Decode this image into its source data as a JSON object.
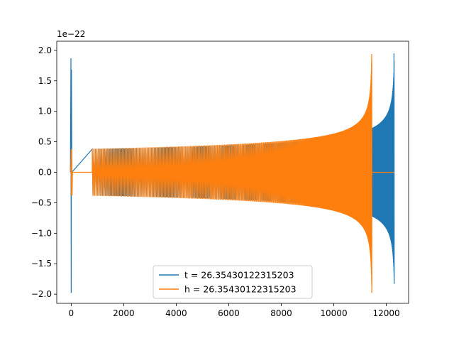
{
  "chart_data": {
    "type": "line",
    "title": "",
    "xlabel": "",
    "ylabel": "",
    "y_offset_label": "1e−22",
    "xlim": [
      -550,
      12850
    ],
    "ylim": [
      -2.15,
      2.15
    ],
    "x_ticks": [
      0,
      2000,
      4000,
      6000,
      8000,
      10000,
      12000
    ],
    "x_tick_labels": [
      "0",
      "2000",
      "4000",
      "6000",
      "8000",
      "10000",
      "12000"
    ],
    "y_ticks": [
      2.0,
      1.5,
      1.0,
      0.5,
      0.0,
      -0.5,
      -1.0,
      -1.5,
      -2.0
    ],
    "y_tick_labels": [
      "2.0",
      "1.5",
      "1.0",
      "0.5",
      "0.0",
      "−0.5",
      "−1.0",
      "−1.5",
      "−2.0"
    ],
    "grid": false,
    "legend_position": "lower-center",
    "series": [
      {
        "name": "t = 26.35430122315203",
        "color": "#1f77b4",
        "description_points": {
          "spike_x": 0,
          "spike_max": 1.87,
          "spike_min": -1.98,
          "chirp_start_x": 800,
          "chirp_end_x": 12300,
          "start_amplitude": 0.38,
          "end_amplitude_max": 1.95,
          "end_amplitude_min": -1.72,
          "mid_amplitude_at_11500": 0.7
        }
      },
      {
        "name": "h = 26.35430122315203",
        "color": "#ff7f0e",
        "description_points": {
          "chirp_start_x": 0,
          "chirp_end_x": 11450,
          "flat_segment": [
            50,
            800
          ],
          "start_amplitude": 0.38,
          "end_amplitude_max": 1.94,
          "end_amplitude_min": -1.98,
          "flat_tail": [
            11450,
            12300
          ]
        }
      }
    ]
  }
}
